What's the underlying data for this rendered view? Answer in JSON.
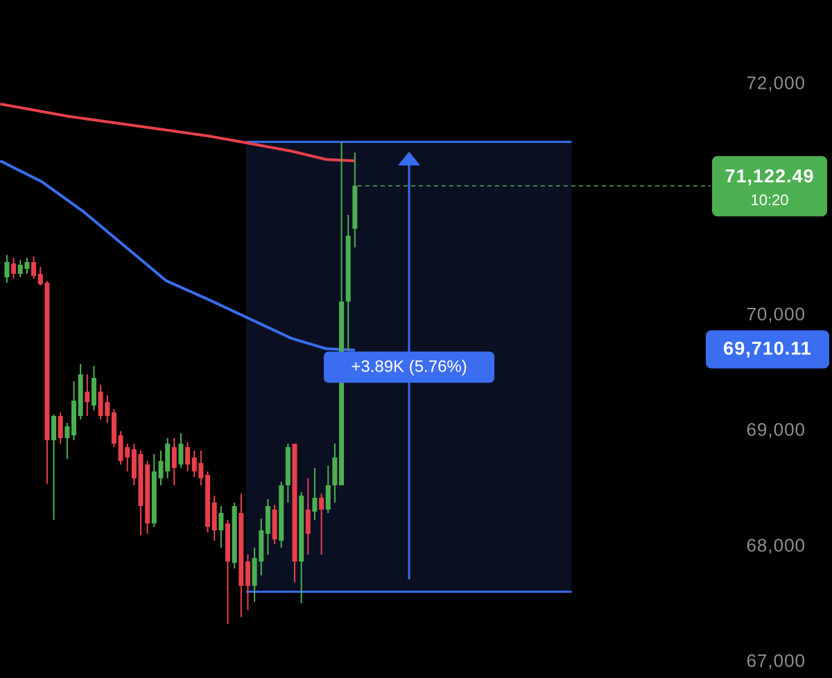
{
  "chart_data": {
    "type": "candlestick",
    "xlim": [
      -1.036,
      123.3
    ],
    "ylim": [
      66863,
      72731
    ],
    "yticks": [
      {
        "value": 72000,
        "label": "72,000"
      },
      {
        "value": 70000,
        "label": "70,000"
      },
      {
        "value": 69000,
        "label": "69,000"
      },
      {
        "value": 68000,
        "label": "68,000"
      },
      {
        "value": 67000,
        "label": "67,000"
      }
    ],
    "up_color": "#4caf50",
    "down_color": "#e8404a",
    "open": [
      70331,
      70451,
      70361,
      70403,
      70463,
      70361,
      70283,
      68921,
      69131,
      68939,
      68963,
      69131,
      69341,
      69221,
      69341,
      69251,
      69161,
      68963,
      68861,
      68843,
      68801,
      68711,
      68201,
      68591,
      68651,
      68861,
      68711,
      68861,
      68771,
      68723,
      68621,
      68381,
      68141,
      68201,
      67859,
      68291,
      67871,
      67661,
      67871,
      68111,
      68321,
      68051,
      68531,
      68891,
      67871,
      68321,
      68303,
      68423,
      68321,
      68531,
      68531,
      70121,
      70751
    ],
    "high": [
      70523,
      70499,
      70481,
      70499,
      70511,
      70421,
      70301,
      69143,
      69161,
      69071,
      69431,
      69581,
      69491,
      69563,
      69401,
      69311,
      69191,
      68999,
      68891,
      68891,
      68831,
      68741,
      68801,
      68831,
      68939,
      68939,
      68981,
      68903,
      68831,
      68831,
      68651,
      68441,
      68351,
      68231,
      68381,
      68459,
      67931,
      67991,
      68243,
      68411,
      68363,
      68561,
      68891,
      68891,
      68471,
      68591,
      68681,
      68459,
      68699,
      68891,
      71501,
      70871,
      71411
    ],
    "low": [
      70283,
      70319,
      70331,
      70361,
      70319,
      70259,
      68543,
      68231,
      68891,
      68759,
      68921,
      69101,
      69131,
      69179,
      69101,
      69071,
      68861,
      68711,
      68651,
      68531,
      68099,
      68111,
      68171,
      68531,
      68591,
      68531,
      68681,
      68651,
      68603,
      68531,
      68123,
      68051,
      67991,
      67331,
      67811,
      67391,
      67451,
      67523,
      67751,
      67931,
      68021,
      67991,
      68381,
      67691,
      67511,
      67931,
      68231,
      67931,
      68291,
      68381,
      68531,
      69701,
      70589
    ],
    "close": [
      70463,
      70361,
      70439,
      70463,
      70343,
      70271,
      68921,
      69131,
      68939,
      69041,
      69263,
      69491,
      69251,
      69461,
      69131,
      69131,
      68891,
      68741,
      68771,
      68591,
      68351,
      68201,
      68651,
      68741,
      68891,
      68681,
      68891,
      68711,
      68651,
      68591,
      68171,
      68141,
      68291,
      67871,
      68351,
      67661,
      67661,
      67901,
      68141,
      68351,
      68063,
      68531,
      68861,
      67871,
      68441,
      68111,
      68423,
      68321,
      68531,
      68771,
      70121,
      70691,
      71123
    ],
    "series": [
      {
        "color": "#e8404a",
        "x": [
          -1,
          9.3,
          19.7,
          30,
          35.8,
          42.5,
          47.7,
          52
        ],
        "values": [
          71831,
          71723,
          71639,
          71555,
          71495,
          71423,
          71351,
          71339
        ]
      },
      {
        "color": "#3a6df0",
        "x": [
          -1,
          5.2,
          11.4,
          17.6,
          23.8,
          30.1,
          36.3,
          42.5,
          47.7,
          52
        ],
        "values": [
          71339,
          71159,
          70901,
          70601,
          70301,
          70139,
          69971,
          69803,
          69713,
          69701
        ]
      }
    ],
    "measure": {
      "x": [
        35.75,
        84.4
      ],
      "arrow_x": 60.1,
      "low": 67609,
      "high": 71503,
      "label": "+3.89K (5.76%)",
      "color": "#3a6df0"
    },
    "last_price": {
      "value": 71122.49,
      "label": "71,122.49",
      "time": "10:20",
      "color": "#4caf50"
    },
    "ma_price": {
      "value": 69710.11,
      "label": "69,710.11",
      "color": "#3a6df0"
    }
  }
}
